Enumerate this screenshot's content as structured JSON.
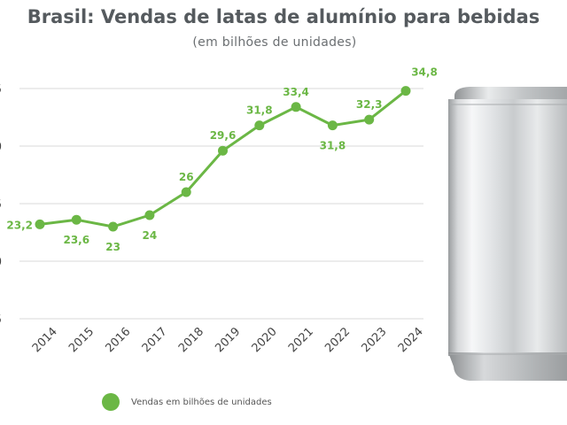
{
  "colors": {
    "series": "#6bb745",
    "grid": "#d9d9d9",
    "title": "#555a5e"
  },
  "chart_data": {
    "type": "line",
    "title": "Brasil: Vendas de latas de alumínio para bebidas",
    "subtitle": "(em bilhões de unidades)",
    "xlabel": "",
    "ylabel": "",
    "categories": [
      "2014",
      "2015",
      "2016",
      "2017",
      "2018",
      "2019",
      "2020",
      "2021",
      "2022",
      "2023",
      "2024"
    ],
    "series": [
      {
        "name": "Vendas em bilhões de unidades",
        "values": [
          23.2,
          23.6,
          23.0,
          24.0,
          26.0,
          29.6,
          31.8,
          33.4,
          31.8,
          32.3,
          34.8
        ],
        "labels": [
          "23,2",
          "23,6",
          "23",
          "24",
          "26",
          "29,6",
          "31,8",
          "33,4",
          "31,8",
          "32,3",
          "34,8"
        ]
      }
    ],
    "ylim": [
      15,
      35
    ],
    "grid": true,
    "legend": "bottom-left",
    "illustration": "aluminum-can"
  }
}
